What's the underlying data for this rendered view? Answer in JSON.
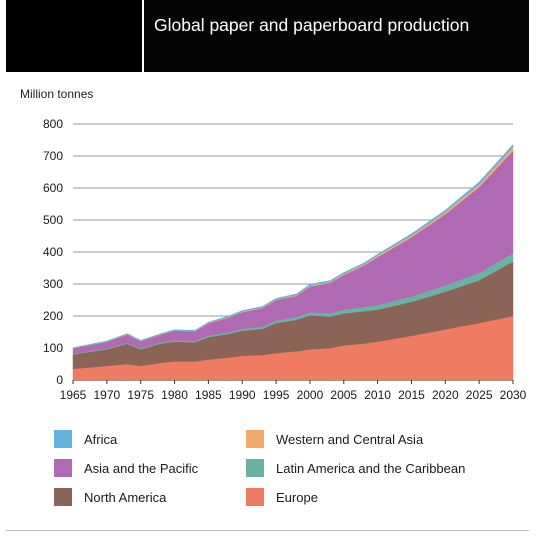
{
  "chart_data": {
    "type": "area",
    "stacked": true,
    "title": "Global paper and paperboard production",
    "ylabel": "Million tonnes",
    "xlabel": "",
    "xlim": [
      1965,
      2030
    ],
    "ylim": [
      0,
      800
    ],
    "yticks": [
      0,
      100,
      200,
      300,
      400,
      500,
      600,
      700,
      800
    ],
    "xticks": [
      1965,
      1970,
      1975,
      1980,
      1985,
      1990,
      1995,
      2000,
      2005,
      2010,
      2015,
      2020,
      2025,
      2030
    ],
    "grid": true,
    "legend_position": "bottom",
    "x": [
      1965,
      1970,
      1973,
      1975,
      1978,
      1980,
      1983,
      1985,
      1988,
      1990,
      1993,
      1995,
      1998,
      2000,
      2003,
      2005,
      2008,
      2010,
      2015,
      2020,
      2025,
      2030
    ],
    "series": [
      {
        "name": "Europe",
        "color": "#ee7b62",
        "values": [
          35,
          44,
          50,
          44,
          54,
          58,
          58,
          64,
          70,
          76,
          78,
          84,
          90,
          96,
          100,
          108,
          114,
          120,
          138,
          158,
          178,
          200
        ]
      },
      {
        "name": "North America",
        "color": "#8b6458",
        "values": [
          45,
          52,
          63,
          52,
          60,
          62,
          60,
          70,
          74,
          78,
          82,
          94,
          98,
          106,
          98,
          100,
          101,
          100,
          106,
          118,
          134,
          170
        ]
      },
      {
        "name": "Latin America and the Caribbean",
        "color": "#6ab3a4",
        "values": [
          2,
          3,
          3,
          3,
          4,
          4,
          4,
          5,
          5,
          6,
          7,
          8,
          9,
          10,
          11,
          12,
          13,
          14,
          17,
          20,
          23,
          26
        ]
      },
      {
        "name": "Asia and the Pacific",
        "color": "#b06ab3",
        "values": [
          17,
          20,
          26,
          22,
          24,
          30,
          30,
          38,
          46,
          52,
          58,
          64,
          66,
          80,
          95,
          108,
          130,
          150,
          185,
          222,
          268,
          320
        ]
      },
      {
        "name": "Western and Central Asia",
        "color": "#f5a96c",
        "values": [
          1,
          1,
          1,
          1,
          1,
          1,
          1,
          2,
          2,
          2,
          2,
          2,
          3,
          3,
          3,
          4,
          4,
          5,
          6,
          7,
          9,
          12
        ]
      },
      {
        "name": "Africa",
        "color": "#62b4df",
        "values": [
          1,
          2,
          2,
          2,
          2,
          2,
          2,
          2,
          3,
          3,
          3,
          3,
          3,
          4,
          4,
          4,
          4,
          4,
          5,
          6,
          7,
          8
        ]
      }
    ]
  },
  "legend": {
    "items": [
      {
        "label": "Africa",
        "color": "#62b4df"
      },
      {
        "label": "Western and Central Asia",
        "color": "#f5a96c"
      },
      {
        "label": "Asia and the Pacific",
        "color": "#b06ab3"
      },
      {
        "label": "Latin America and the Caribbean",
        "color": "#6ab3a4"
      },
      {
        "label": "North America",
        "color": "#8b6458"
      },
      {
        "label": "Europe",
        "color": "#ee7b62"
      }
    ]
  }
}
